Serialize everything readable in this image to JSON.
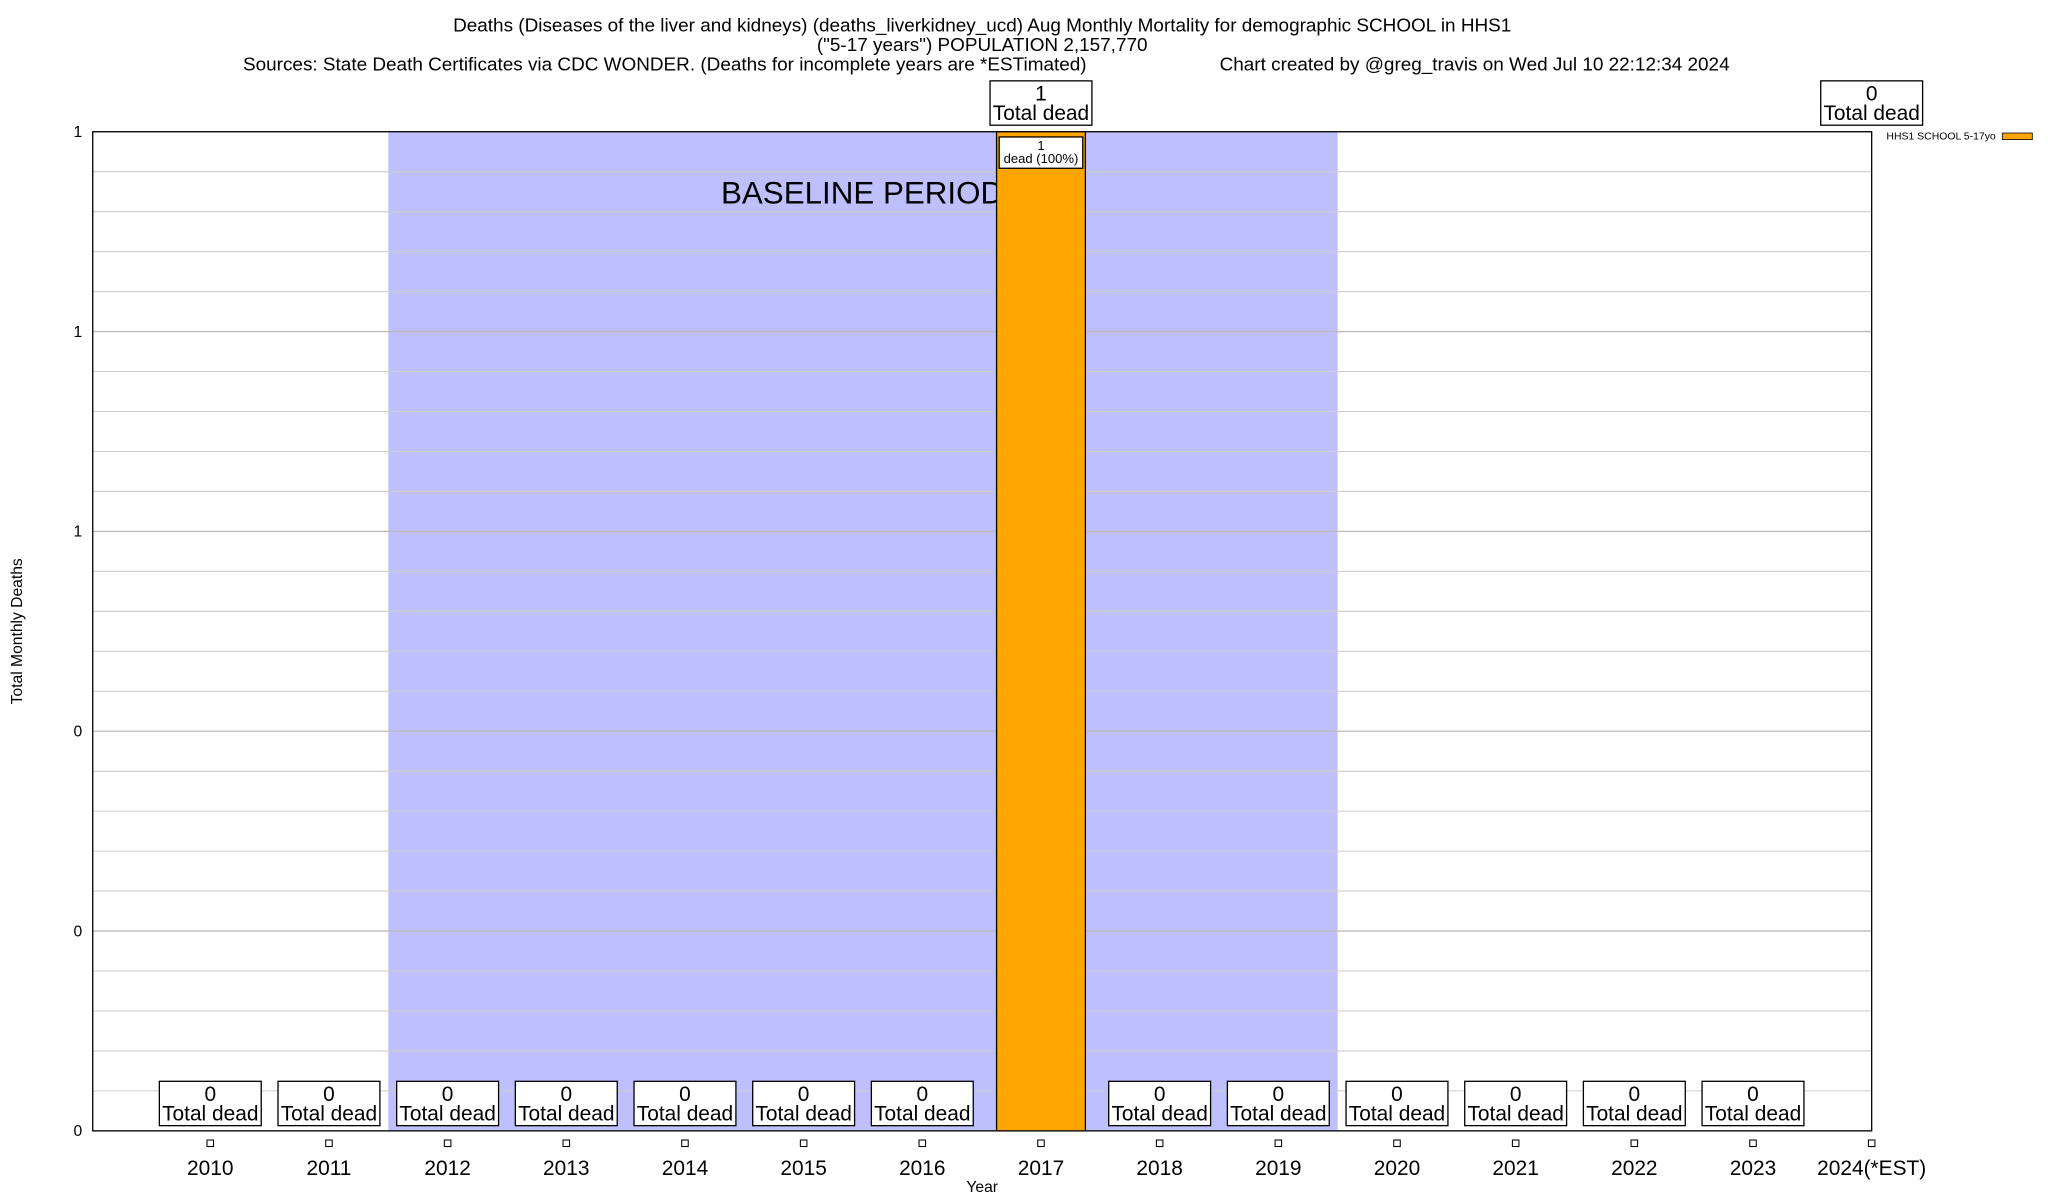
{
  "chart_data": {
    "type": "bar",
    "title": [
      "Deaths (Diseases of the liver and kidneys) (deaths_liverkidney_ucd) Aug Monthly Mortality for demographic SCHOOL in HHS1",
      "(\"5-17 years\") POPULATION 2,157,770"
    ],
    "sources": "Sources: State Death Certificates via CDC WONDER. (Deaths for incomplete years are *ESTimated)",
    "credit": "Chart created by @greg_travis on Wed Jul 10 22:12:34 2024",
    "x_label": "Year",
    "y_label": "Total Monthly Deaths",
    "categories": [
      "2010",
      "2011",
      "2012",
      "2013",
      "2014",
      "2015",
      "2016",
      "2017",
      "2018",
      "2019",
      "2020",
      "2021",
      "2022",
      "2023",
      "2024(*EST)"
    ],
    "series": [
      {
        "name": "HHS1 SCHOOL 5-17yo",
        "color": "#ffa500",
        "values": [
          0,
          0,
          0,
          0,
          0,
          0,
          0,
          1,
          0,
          0,
          0,
          0,
          0,
          0,
          0
        ],
        "value_labels": [
          [
            "0",
            "Total dead"
          ],
          [
            "0",
            "Total dead"
          ],
          [
            "0",
            "Total dead"
          ],
          [
            "0",
            "Total dead"
          ],
          [
            "0",
            "Total dead"
          ],
          [
            "0",
            "Total dead"
          ],
          [
            "0",
            "Total dead"
          ],
          [
            "1",
            "Total dead"
          ],
          [
            "0",
            "Total dead"
          ],
          [
            "0",
            "Total dead"
          ],
          [
            "0",
            "Total dead"
          ],
          [
            "0",
            "Total dead"
          ],
          [
            "0",
            "Total dead"
          ],
          [
            "0",
            "Total dead"
          ],
          [
            "0",
            "Total dead"
          ]
        ],
        "bar_labels": [
          null,
          null,
          null,
          null,
          null,
          null,
          null,
          [
            "1",
            "dead (100%)"
          ],
          null,
          null,
          null,
          null,
          null,
          null,
          null
        ]
      }
    ],
    "ylim": [
      0,
      1
    ],
    "yticks": [
      0,
      {
        "value": 0.2,
        "label": "0"
      },
      {
        "value": 0.4,
        "label": "0"
      },
      {
        "value": 0.6,
        "label": "1"
      },
      {
        "value": 0.8,
        "label": "1"
      },
      1
    ],
    "grid": true,
    "baseline": {
      "label": "BASELINE PERIOD",
      "categories": [
        "2012",
        "2019"
      ],
      "color": "#bfbffd"
    },
    "legend": "top-right"
  }
}
